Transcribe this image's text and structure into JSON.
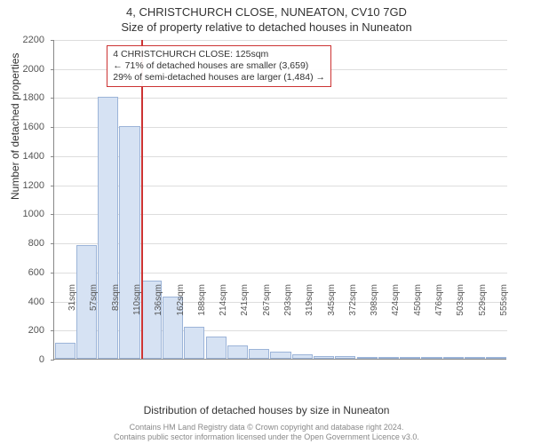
{
  "title": {
    "line1": "4, CHRISTCHURCH CLOSE, NUNEATON, CV10 7GD",
    "line2": "Size of property relative to detached houses in Nuneaton"
  },
  "chart": {
    "type": "histogram",
    "ylabel": "Number of detached properties",
    "xlabel": "Distribution of detached houses by size in Nuneaton",
    "ylim": [
      0,
      2200
    ],
    "ytick_step": 200,
    "background_color": "#ffffff",
    "grid_color": "#dddddd",
    "axis_color": "#888888",
    "tick_fontsize": 11,
    "label_fontsize": 12,
    "bar_fill": "#d6e2f3",
    "bar_border": "#9cb4d8",
    "reference_line": {
      "value_sqm": 125,
      "color": "#cc3333",
      "width": 2
    },
    "categories": [
      "31sqm",
      "57sqm",
      "83sqm",
      "110sqm",
      "136sqm",
      "162sqm",
      "188sqm",
      "214sqm",
      "241sqm",
      "267sqm",
      "293sqm",
      "319sqm",
      "345sqm",
      "372sqm",
      "398sqm",
      "424sqm",
      "450sqm",
      "476sqm",
      "503sqm",
      "529sqm",
      "555sqm"
    ],
    "values": [
      110,
      780,
      1800,
      1600,
      540,
      430,
      220,
      150,
      90,
      70,
      50,
      30,
      20,
      18,
      15,
      12,
      10,
      8,
      6,
      5,
      4
    ],
    "bar_width_ratio": 0.95
  },
  "annotation": {
    "line1": "4 CHRISTCHURCH CLOSE: 125sqm",
    "line2": "← 71% of detached houses are smaller (3,659)",
    "line3": "29% of semi-detached houses are larger (1,484) →",
    "border_color": "#cc3333",
    "fontsize": 10.5
  },
  "footer": {
    "line1": "Contains HM Land Registry data © Crown copyright and database right 2024.",
    "line2": "Contains public sector information licensed under the Open Government Licence v3.0."
  }
}
